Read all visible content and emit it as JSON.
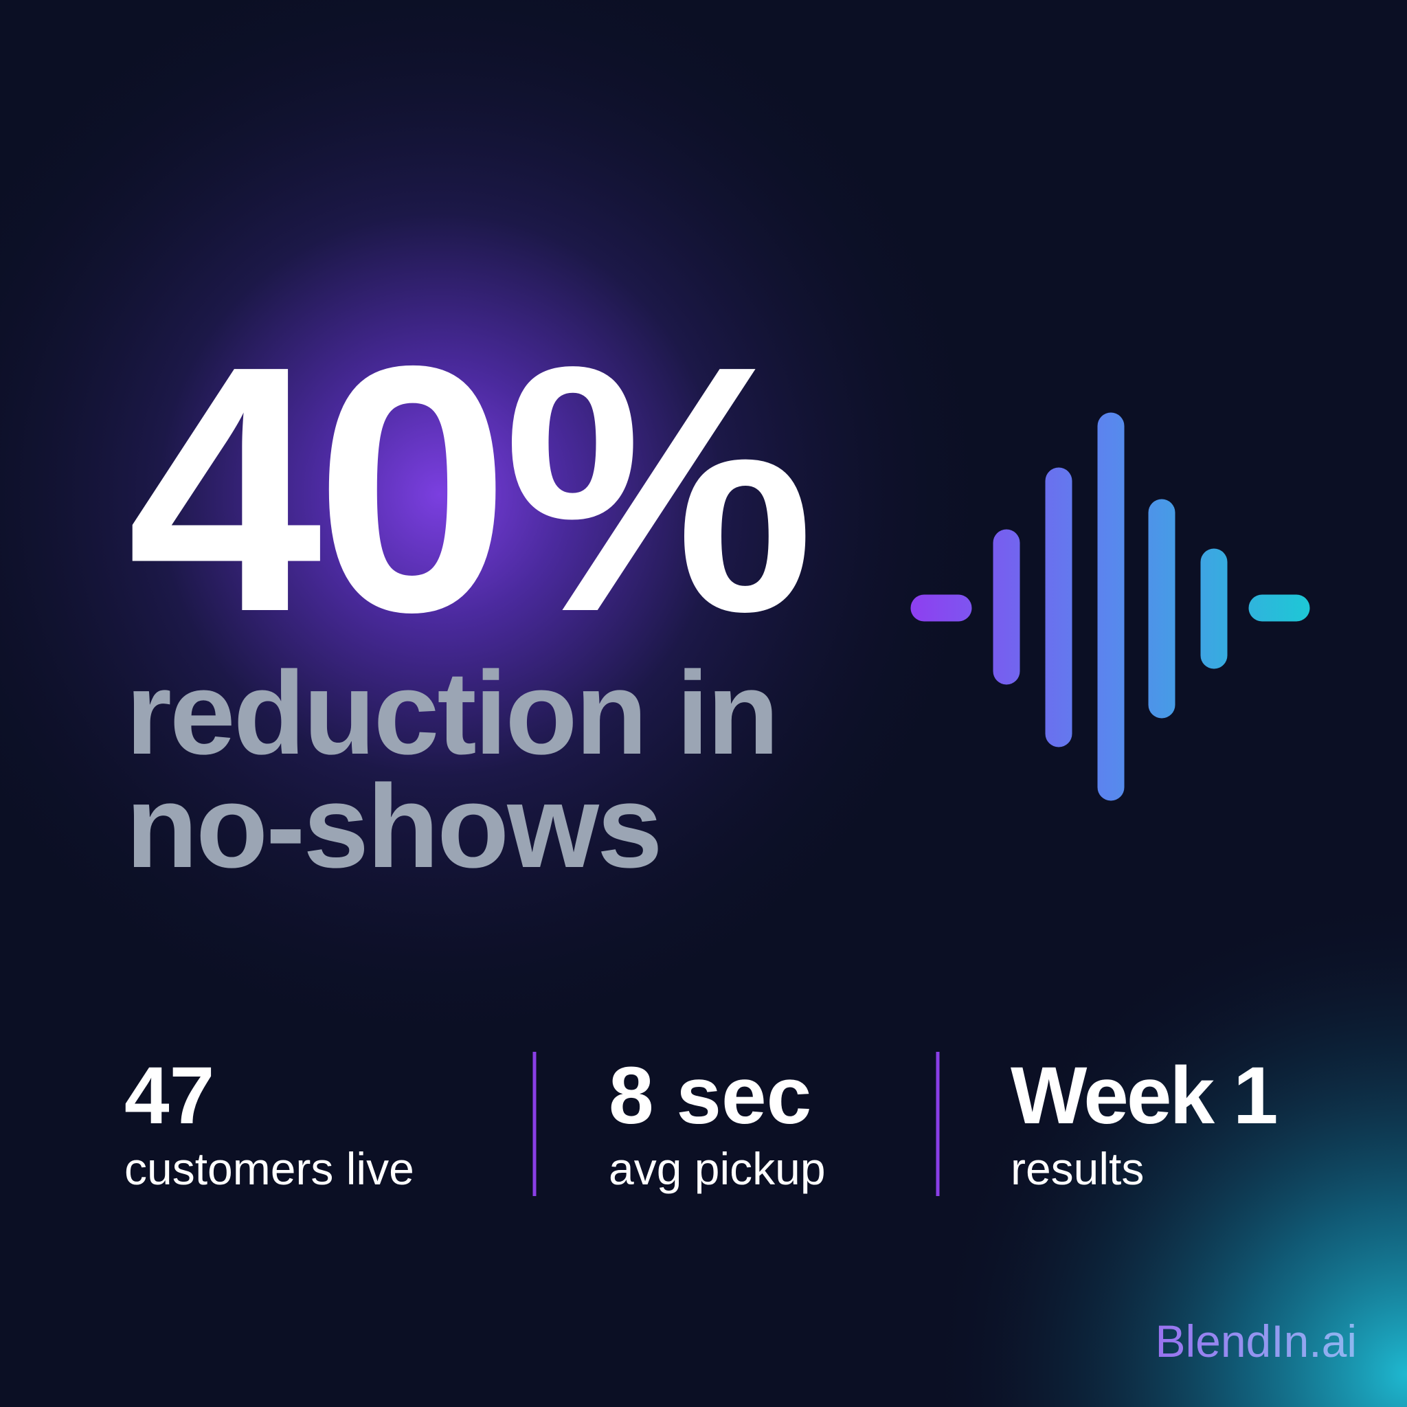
{
  "headline": {
    "value": "40%",
    "caption_line1": "reduction in",
    "caption_line2": "no-shows"
  },
  "stats": [
    {
      "value": "47",
      "label": "customers live"
    },
    {
      "value": "8 sec",
      "label": "avg pickup"
    },
    {
      "value": "Week 1",
      "label": "results"
    }
  ],
  "brand": "BlendIn.ai"
}
